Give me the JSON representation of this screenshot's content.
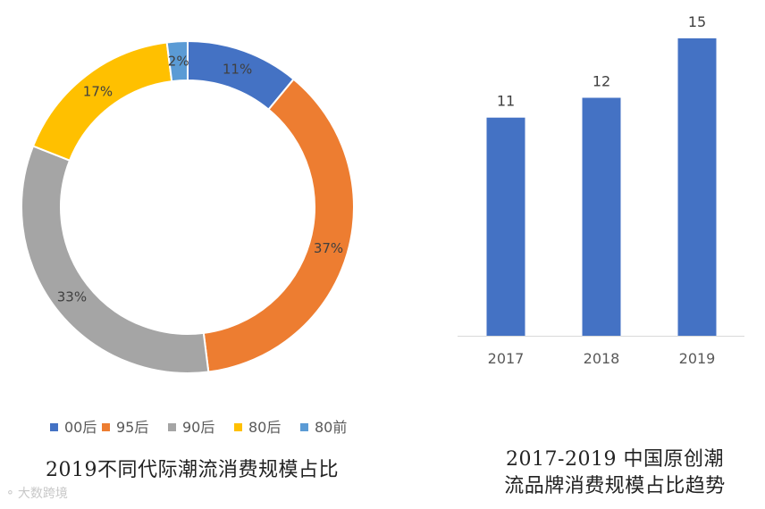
{
  "chart_data": [
    {
      "type": "pie",
      "variant": "donut",
      "title": "2019不同代际潮流消费规模占比",
      "categories": [
        "00后",
        "95后",
        "90后",
        "80后",
        "80前"
      ],
      "values": [
        11,
        37,
        33,
        17,
        2
      ],
      "labels": [
        "11%",
        "37%",
        "33%",
        "17%",
        "2%"
      ],
      "colors": [
        "#4472C4",
        "#ED7D31",
        "#A5A5A5",
        "#FFC000",
        "#5B9BD5"
      ],
      "legend_position": "bottom"
    },
    {
      "type": "bar",
      "title": "2017-2019 中国原创潮流品牌消费规模占比趋势",
      "title_lines": [
        "2017-2019 中国原创潮",
        "流品牌消费规模占比趋势"
      ],
      "categories": [
        "2017",
        "2018",
        "2019"
      ],
      "values": [
        11,
        12,
        15
      ],
      "data_labels": [
        "11",
        "12",
        "15"
      ],
      "color": "#4472C4",
      "ylim": [
        0,
        15.4
      ],
      "xlabel": "",
      "ylabel": "",
      "grid": false
    }
  ],
  "watermark": {
    "icon": "logo-icon",
    "text": "大数跨境"
  }
}
